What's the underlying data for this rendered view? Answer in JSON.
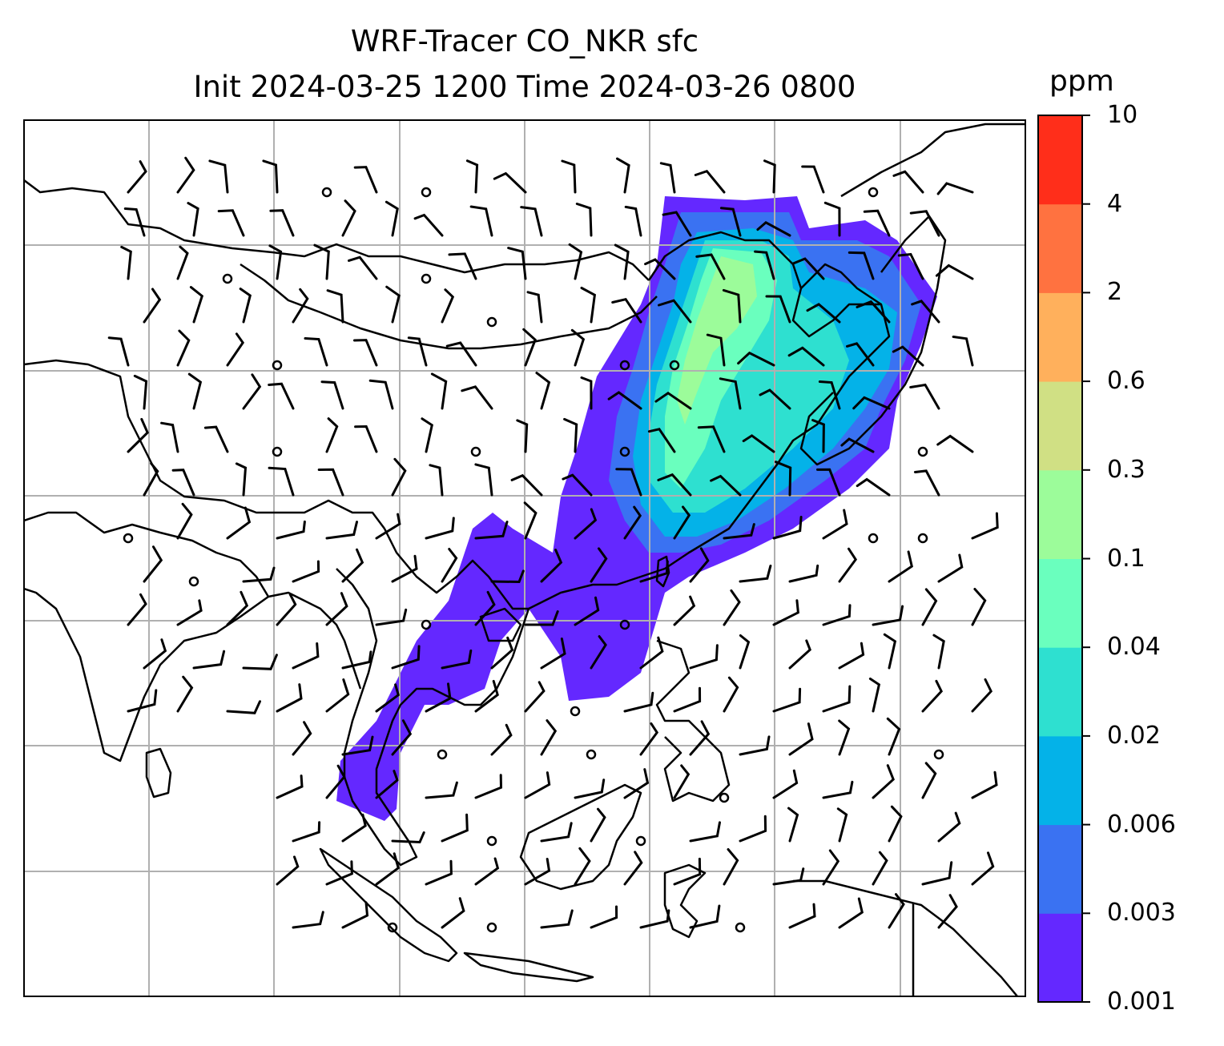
{
  "title": {
    "line1": "WRF-Tracer CO_NKR sfc",
    "line2": "Init 2024-03-25 1200 Time 2024-03-26 0800"
  },
  "colorbar": {
    "unit": "ppm",
    "ticks": [
      "0.001",
      "0.003",
      "0.006",
      "0.02",
      "0.04",
      "0.1",
      "0.3",
      "0.6",
      "2",
      "4",
      "10"
    ],
    "colors": [
      "#6428ff",
      "#3a72f2",
      "#04b2e8",
      "#2ee0d0",
      "#6affbe",
      "#9cfc9a",
      "#d0e084",
      "#ffb05c",
      "#ff7240",
      "#ff2e1a"
    ]
  },
  "map": {
    "tracer_colors": [
      "#6428ff",
      "#3a72f2",
      "#04b2e8",
      "#2ee0d0",
      "#6affbe",
      "#9cfc9a"
    ],
    "gridline_color": "#b0b0b0",
    "coastline_color": "#000000"
  }
}
